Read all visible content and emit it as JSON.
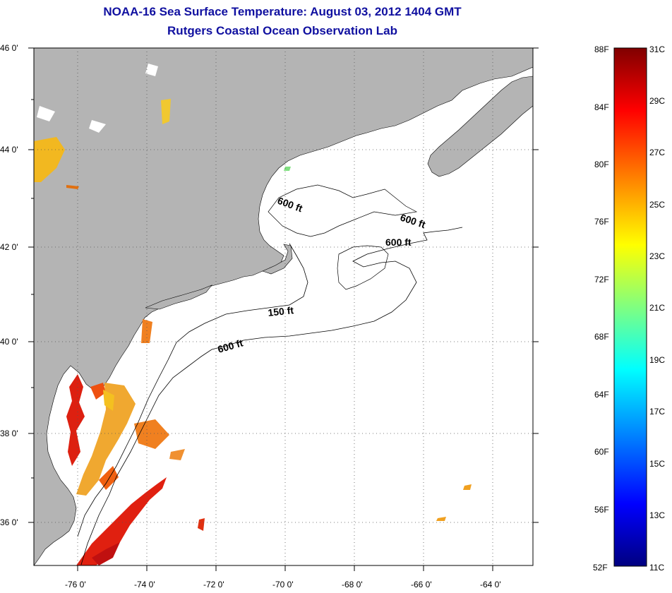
{
  "title_line1": "NOAA-16 Sea Surface Temperature:  August 03, 2012 1404 GMT",
  "title_line2": "Rutgers Coastal Ocean Observation Lab",
  "map": {
    "lat_labels": [
      "46 0'",
      "44 0'",
      "42 0'",
      "40 0'",
      "38 0'",
      "36 0'"
    ],
    "lon_labels": [
      "-76 0'",
      "-74 0'",
      "-72 0'",
      "-70 0'",
      "-68 0'",
      "-66 0'",
      "-64 0'"
    ],
    "isobath_labels": [
      "600 ft",
      "600 ft",
      "600 ft",
      "150 ft",
      "600 ft"
    ],
    "land_color": "#b4b4b4",
    "water_color": "#ffffff"
  },
  "colorbar": {
    "fahrenheit_labels": [
      "88F",
      "84F",
      "80F",
      "76F",
      "72F",
      "68F",
      "64F",
      "60F",
      "56F",
      "52F"
    ],
    "celsius_labels": [
      "31C",
      "29C",
      "27C",
      "25C",
      "23C",
      "21C",
      "19C",
      "17C",
      "15C",
      "13C",
      "11C"
    ],
    "colors": [
      "#800000",
      "#ff0000",
      "#ff8000",
      "#ffff00",
      "#80ff80",
      "#00ffff",
      "#0080ff",
      "#0000ff",
      "#000080"
    ]
  }
}
